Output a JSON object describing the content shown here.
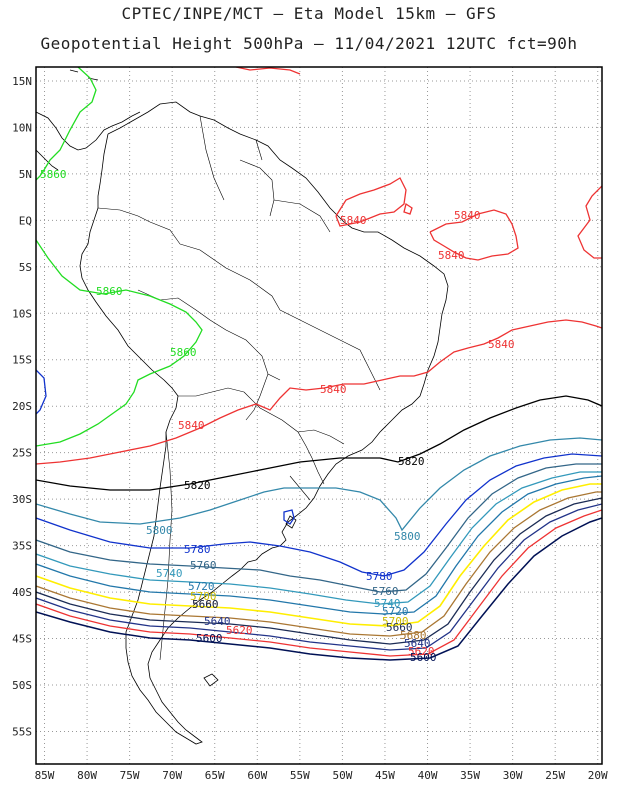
{
  "header": {
    "title_line1": "CPTEC/INPE/MCT –  Eta Model 15km – GFS",
    "title_line2": "Geopotential Height 500hPa – 11/04/2021 12UTC fct=90h"
  },
  "axes": {
    "lon_labels": [
      "85W",
      "80W",
      "75W",
      "70W",
      "65W",
      "60W",
      "55W",
      "50W",
      "45W",
      "40W",
      "35W",
      "30W",
      "25W",
      "20W"
    ],
    "lat_labels": [
      "15N",
      "10N",
      "5N",
      "EQ",
      "5S",
      "10S",
      "15S",
      "20S",
      "25S",
      "30S",
      "35S",
      "40S",
      "45S",
      "50S",
      "55S"
    ],
    "lon_range": [
      -86,
      -19.5
    ],
    "lat_range": [
      16.5,
      -58.5
    ],
    "grid": "dotted"
  },
  "contours": [
    {
      "label": "5860",
      "color": "#22dd22"
    },
    {
      "label": "5840",
      "color": "#ee3333"
    },
    {
      "label": "5820",
      "color": "#000000"
    },
    {
      "label": "5800",
      "color": "#3388aa"
    },
    {
      "label": "5780",
      "color": "#1133cc"
    },
    {
      "label": "5760",
      "color": "#336688"
    },
    {
      "label": "5740",
      "color": "#3399bb"
    },
    {
      "label": "5720",
      "color": "#2277aa"
    },
    {
      "label": "5700",
      "color": "#ffee00"
    },
    {
      "label": "5680",
      "color": "#aa7733"
    },
    {
      "label": "5660",
      "color": "#1c2c55"
    },
    {
      "label": "5640",
      "color": "#223388"
    },
    {
      "label": "5620",
      "color": "#ee3333"
    },
    {
      "label": "5600",
      "color": "#001155"
    }
  ]
}
